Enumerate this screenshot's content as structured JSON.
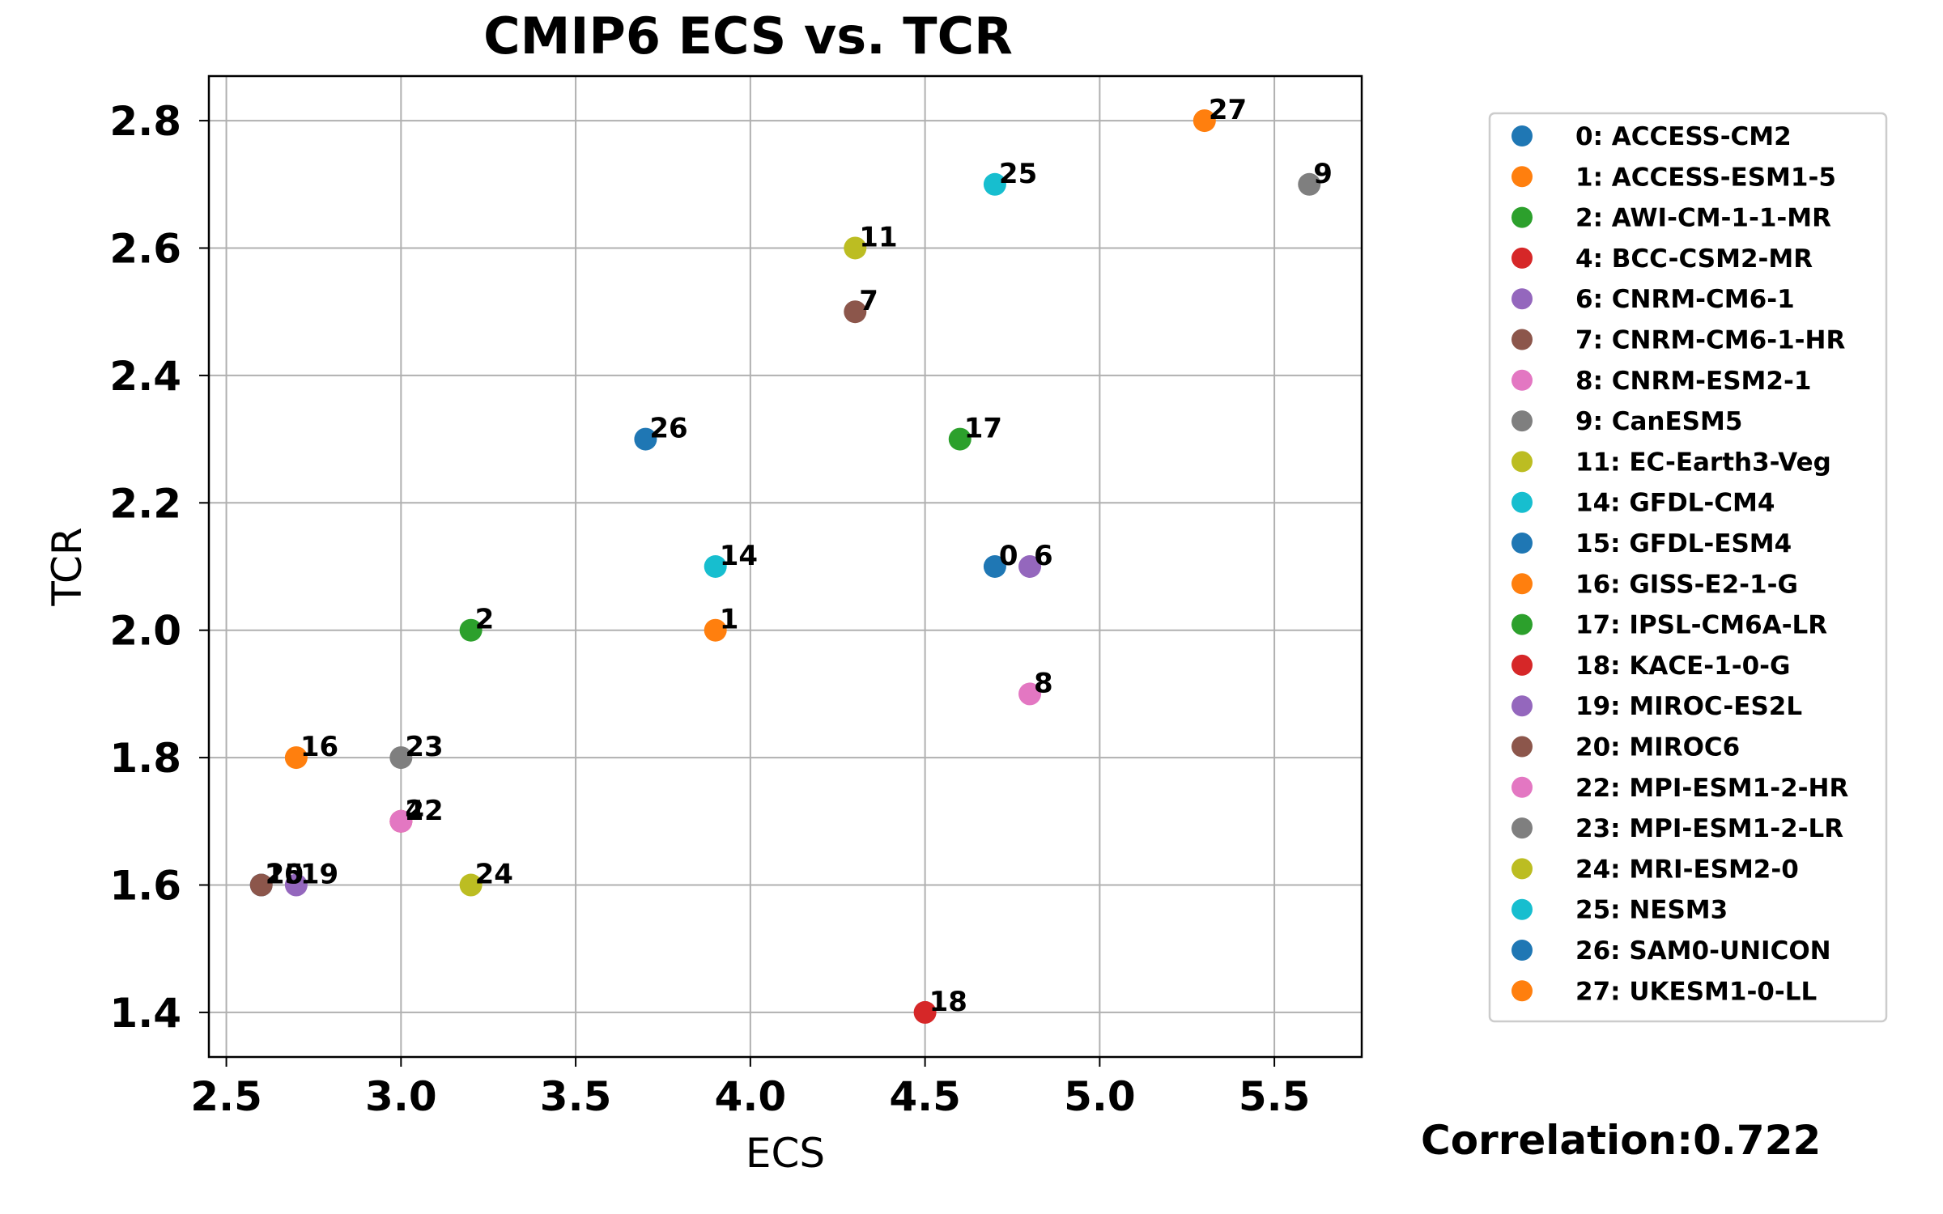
{
  "chart_data": {
    "type": "scatter",
    "title": "CMIP6 ECS vs. TCR",
    "xlabel": "ECS",
    "ylabel": "TCR",
    "xlim": [
      2.45,
      5.75
    ],
    "ylim": [
      1.33,
      2.87
    ],
    "xticks": [
      2.5,
      3.0,
      3.5,
      4.0,
      4.5,
      5.0,
      5.5
    ],
    "xtick_labels": [
      "2.5",
      "3.0",
      "3.5",
      "4.0",
      "4.5",
      "5.0",
      "5.5"
    ],
    "yticks": [
      1.4,
      1.6,
      1.8,
      2.0,
      2.2,
      2.4,
      2.6,
      2.8
    ],
    "ytick_labels": [
      "1.4",
      "1.6",
      "1.8",
      "2.0",
      "2.2",
      "2.4",
      "2.6",
      "2.8"
    ],
    "grid": true,
    "legend_position": "outside-right",
    "annotation": "Correlation:0.722",
    "points": [
      {
        "id": "0",
        "legend": "0: ACCESS-CM2",
        "ecs": 4.7,
        "tcr": 2.1,
        "color": "#1f77b4"
      },
      {
        "id": "1",
        "legend": "1: ACCESS-ESM1-5",
        "ecs": 3.9,
        "tcr": 2.0,
        "color": "#ff7f0e"
      },
      {
        "id": "2",
        "legend": "2: AWI-CM-1-1-MR",
        "ecs": 3.2,
        "tcr": 2.0,
        "color": "#2ca02c"
      },
      {
        "id": "4",
        "legend": "4: BCC-CSM2-MR",
        "ecs": 3.0,
        "tcr": 1.7,
        "color": "#d62728"
      },
      {
        "id": "6",
        "legend": "6: CNRM-CM6-1",
        "ecs": 4.8,
        "tcr": 2.1,
        "color": "#9467bd"
      },
      {
        "id": "7",
        "legend": "7: CNRM-CM6-1-HR",
        "ecs": 4.3,
        "tcr": 2.5,
        "color": "#8c564b"
      },
      {
        "id": "8",
        "legend": "8: CNRM-ESM2-1",
        "ecs": 4.8,
        "tcr": 1.9,
        "color": "#e377c2"
      },
      {
        "id": "9",
        "legend": "9: CanESM5",
        "ecs": 5.6,
        "tcr": 2.7,
        "color": "#7f7f7f"
      },
      {
        "id": "11",
        "legend": "11: EC-Earth3-Veg",
        "ecs": 4.3,
        "tcr": 2.6,
        "color": "#bcbd22"
      },
      {
        "id": "14",
        "legend": "14: GFDL-CM4",
        "ecs": 3.9,
        "tcr": 2.1,
        "color": "#17becf"
      },
      {
        "id": "15",
        "legend": "15: GFDL-ESM4",
        "ecs": 2.6,
        "tcr": 1.6,
        "color": "#1f77b4"
      },
      {
        "id": "16",
        "legend": "16: GISS-E2-1-G",
        "ecs": 2.7,
        "tcr": 1.8,
        "color": "#ff7f0e"
      },
      {
        "id": "17",
        "legend": "17: IPSL-CM6A-LR",
        "ecs": 4.6,
        "tcr": 2.3,
        "color": "#2ca02c"
      },
      {
        "id": "18",
        "legend": "18: KACE-1-0-G",
        "ecs": 4.5,
        "tcr": 1.4,
        "color": "#d62728"
      },
      {
        "id": "19",
        "legend": "19: MIROC-ES2L",
        "ecs": 2.7,
        "tcr": 1.6,
        "color": "#9467bd"
      },
      {
        "id": "20",
        "legend": "20: MIROC6",
        "ecs": 2.6,
        "tcr": 1.6,
        "color": "#8c564b"
      },
      {
        "id": "22",
        "legend": "22: MPI-ESM1-2-HR",
        "ecs": 3.0,
        "tcr": 1.7,
        "color": "#e377c2"
      },
      {
        "id": "23",
        "legend": "23: MPI-ESM1-2-LR",
        "ecs": 3.0,
        "tcr": 1.8,
        "color": "#7f7f7f"
      },
      {
        "id": "24",
        "legend": "24: MRI-ESM2-0",
        "ecs": 3.2,
        "tcr": 1.6,
        "color": "#bcbd22"
      },
      {
        "id": "25",
        "legend": "25: NESM3",
        "ecs": 4.7,
        "tcr": 2.7,
        "color": "#17becf"
      },
      {
        "id": "26",
        "legend": "26: SAM0-UNICON",
        "ecs": 3.7,
        "tcr": 2.3,
        "color": "#1f77b4"
      },
      {
        "id": "27",
        "legend": "27: UKESM1-0-LL",
        "ecs": 5.3,
        "tcr": 2.8,
        "color": "#ff7f0e"
      }
    ]
  }
}
